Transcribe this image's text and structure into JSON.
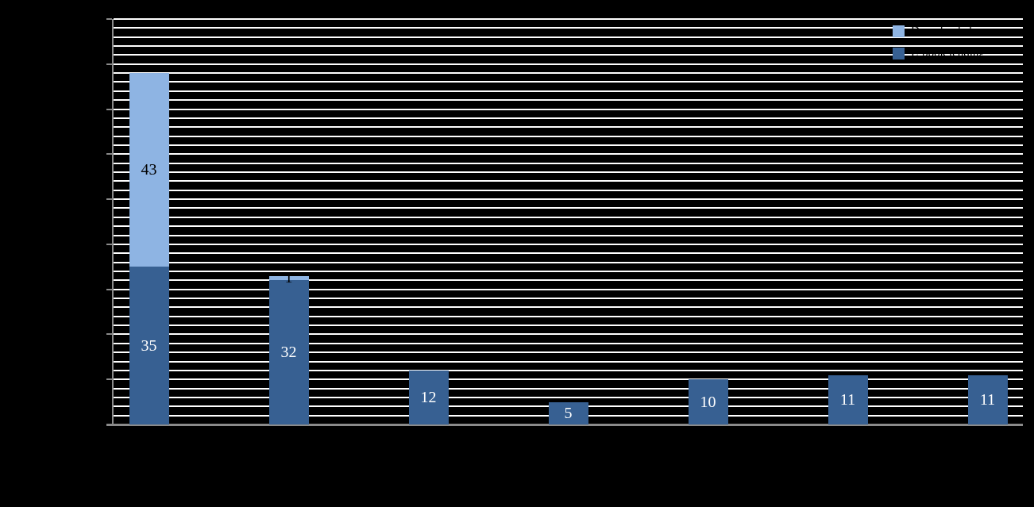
{
  "window": {
    "background_color": "#000000"
  },
  "chart_data": {
    "type": "bar",
    "stacked": true,
    "title": "",
    "categories": [
      "",
      "",
      "",
      "",
      "",
      "",
      ""
    ],
    "axis": {
      "ymin": 0,
      "ymax": 90,
      "minor_gridline_step": 2,
      "major_tick_step": 10,
      "gridlines": "white-horizontal",
      "axis_color": "#8a8a8a",
      "tick_labels_visible": false
    },
    "series": [
      {
        "name": "E-book lending",
        "role": "bottom-stack",
        "color": "#376092",
        "values": [
          35,
          32,
          12,
          5,
          10,
          11,
          11
        ],
        "data_labels": [
          "35",
          "32",
          "12",
          "5",
          "10",
          "11",
          "11"
        ],
        "label_color": "#ffffff"
      },
      {
        "name": "Downloaded",
        "role": "top-stack",
        "color": "#8EB4E3",
        "values": [
          43,
          1,
          0,
          0,
          0,
          0,
          0
        ],
        "data_labels": [
          "43",
          "1",
          "",
          "",
          "",
          "",
          ""
        ],
        "label_color": "#000000"
      }
    ],
    "legend": {
      "position": "top-right",
      "text_color": "#000000",
      "entries": [
        {
          "label": "Downloaded",
          "color": "#8EB4E3"
        },
        {
          "label": "E-book lending",
          "color": "#376092"
        }
      ]
    }
  }
}
